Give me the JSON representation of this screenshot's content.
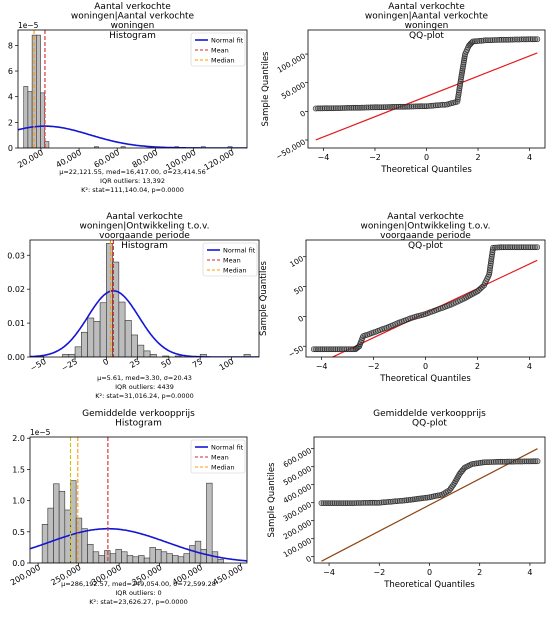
{
  "chart_data": [
    {
      "type": "histogram",
      "title_lines": [
        "Aantal verkochte",
        "woningen|Aantal verkochte",
        "woningen",
        "Histogram"
      ],
      "x_ticks": [
        20000,
        40000,
        60000,
        80000,
        100000,
        120000
      ],
      "x_tick_labels": [
        "20,000",
        "40,000",
        "60,000",
        "80,000",
        "100,000",
        "120,000"
      ],
      "y_ticks": [
        0,
        2,
        4,
        6,
        8
      ],
      "y_tick_labels": [
        "0",
        "2",
        "4",
        "6",
        "8"
      ],
      "y_scale_label": "1e−5",
      "xlim": [
        8000,
        128000
      ],
      "ylim": [
        0,
        9.2
      ],
      "bins": [
        {
          "x0": 11000,
          "x1": 13200,
          "v": 4.8
        },
        {
          "x0": 13200,
          "x1": 15400,
          "v": 4.4
        },
        {
          "x0": 15400,
          "x1": 17600,
          "v": 8.8
        },
        {
          "x0": 17600,
          "x1": 19800,
          "v": 8.8
        },
        {
          "x0": 19800,
          "x1": 22000,
          "v": 4.3
        },
        {
          "x0": 22000,
          "x1": 24200,
          "v": 0.5
        },
        {
          "x0": 48000,
          "x1": 50200,
          "v": 0.1
        },
        {
          "x0": 62000,
          "x1": 64200,
          "v": 0.1
        },
        {
          "x0": 76000,
          "x1": 78200,
          "v": 0.1
        },
        {
          "x0": 90000,
          "x1": 92200,
          "v": 0.1
        },
        {
          "x0": 104000,
          "x1": 106200,
          "v": 0.1
        },
        {
          "x0": 118000,
          "x1": 120200,
          "v": 0.1
        }
      ],
      "normal_fit": {
        "mu": 22121.55,
        "sigma": 23414.56
      },
      "mean": 22121.55,
      "median": 16417.0,
      "legend": [
        "Normal fit",
        "Mean",
        "Median"
      ],
      "stats_lines": [
        "μ=22,121.55, med=16,417.00, σ=23,414.56",
        "IQR outliers: 13,392",
        "K²: stat=111,140.04, p=0.0000"
      ]
    },
    {
      "type": "qq",
      "title_lines": [
        "Aantal verkochte",
        "woningen|Aantal verkochte",
        "woningen",
        "QQ-plot"
      ],
      "xlabel": "Theoretical Quantiles",
      "ylabel": "Sample Quantiles",
      "x_ticks": [
        -4,
        -2,
        0,
        2,
        4
      ],
      "x_tick_labels": [
        "−4",
        "−2",
        "0",
        "2",
        "4"
      ],
      "y_ticks": [
        -50000,
        0,
        50000,
        100000
      ],
      "y_tick_labels": [
        "−50,000",
        "0",
        "50,000",
        "100,000"
      ],
      "xlim": [
        -4.6,
        4.6
      ],
      "ylim": [
        -64000,
        142000
      ],
      "line_color": "#e41a1c",
      "reference_line": [
        [
          -4.3,
          -50000
        ],
        [
          4.3,
          102000
        ]
      ],
      "sample_curve": [
        [
          -4.3,
          5000
        ],
        [
          -3.0,
          6000
        ],
        [
          -1.5,
          7500
        ],
        [
          0,
          9000
        ],
        [
          0.8,
          12000
        ],
        [
          1.2,
          17000
        ],
        [
          1.35,
          60000
        ],
        [
          1.5,
          100000
        ],
        [
          1.65,
          115000
        ],
        [
          1.8,
          122000
        ],
        [
          2.3,
          124000
        ],
        [
          3.0,
          125000
        ],
        [
          4.3,
          126000
        ]
      ]
    },
    {
      "type": "histogram",
      "title_lines": [
        "Aantal verkochte",
        "woningen|Ontwikkeling  t.o.v.",
        "voorgaande periode",
        "Histogram"
      ],
      "x_ticks": [
        -50,
        -25,
        0,
        25,
        50,
        75,
        100
      ],
      "x_tick_labels": [
        "−50",
        "−25",
        "0",
        "25",
        "50",
        "75",
        "100"
      ],
      "y_ticks": [
        0.0,
        0.01,
        0.02,
        0.03
      ],
      "y_tick_labels": [
        "0.00",
        "0.01",
        "0.02",
        "0.03"
      ],
      "xlim": [
        -61,
        122
      ],
      "ylim": [
        0,
        0.0345
      ],
      "bins": [
        {
          "x0": -55,
          "x1": -50,
          "v": 0.0003
        },
        {
          "x0": -35,
          "x1": -30,
          "v": 0.0008
        },
        {
          "x0": -30,
          "x1": -25,
          "v": 0.0008
        },
        {
          "x0": -25,
          "x1": -20,
          "v": 0.003
        },
        {
          "x0": -20,
          "x1": -15,
          "v": 0.0073
        },
        {
          "x0": -15,
          "x1": -10,
          "v": 0.0115
        },
        {
          "x0": -10,
          "x1": -5,
          "v": 0.0105
        },
        {
          "x0": -5,
          "x1": 0,
          "v": 0.016
        },
        {
          "x0": 0,
          "x1": 5,
          "v": 0.0335
        },
        {
          "x0": 5,
          "x1": 10,
          "v": 0.028
        },
        {
          "x0": 10,
          "x1": 15,
          "v": 0.0162
        },
        {
          "x0": 15,
          "x1": 20,
          "v": 0.0108
        },
        {
          "x0": 20,
          "x1": 25,
          "v": 0.0065
        },
        {
          "x0": 25,
          "x1": 30,
          "v": 0.0035
        },
        {
          "x0": 30,
          "x1": 35,
          "v": 0.0018
        },
        {
          "x0": 35,
          "x1": 40,
          "v": 0.0008
        },
        {
          "x0": 45,
          "x1": 50,
          "v": 0.0003
        },
        {
          "x0": 55,
          "x1": 60,
          "v": 0.0003
        },
        {
          "x0": 75,
          "x1": 80,
          "v": 0.0008
        },
        {
          "x0": 110,
          "x1": 115,
          "v": 0.0008
        }
      ],
      "normal_fit": {
        "mu": 5.61,
        "sigma": 20.43
      },
      "mean": 5.61,
      "median": 3.3,
      "legend": [
        "Normal fit",
        "Mean",
        "Median"
      ],
      "stats_lines": [
        "μ=5.61, med=3.30, σ=20.43",
        "IQR outliers: 4439",
        "K²: stat=31,016.24, p=0.0000"
      ]
    },
    {
      "type": "qq",
      "title_lines": [
        "Aantal verkochte",
        "woningen|Ontwikkeling  t.o.v.",
        "voorgaande periode",
        "QQ-plot"
      ],
      "xlabel": "Theoretical Quantiles",
      "ylabel": "Sample Quantiles",
      "x_ticks": [
        -4,
        -2,
        0,
        2,
        4
      ],
      "x_tick_labels": [
        "−4",
        "−2",
        "0",
        "2",
        "4"
      ],
      "y_ticks": [
        -50,
        0,
        50,
        100
      ],
      "y_tick_labels": [
        "−50",
        "0",
        "50",
        "100"
      ],
      "xlim": [
        -4.6,
        4.6
      ],
      "ylim": [
        -68,
        128
      ],
      "line_color": "#e41a1c",
      "reference_line": [
        [
          -4.3,
          -83
        ],
        [
          4.3,
          94
        ]
      ],
      "sample_curve": [
        [
          -4.3,
          -55
        ],
        [
          -3.3,
          -55
        ],
        [
          -2.7,
          -55
        ],
        [
          -2.55,
          -50
        ],
        [
          -2.4,
          -33
        ],
        [
          -2.0,
          -27
        ],
        [
          -1.5,
          -19
        ],
        [
          -1.0,
          -10
        ],
        [
          -0.5,
          -2
        ],
        [
          0,
          4
        ],
        [
          0.5,
          12
        ],
        [
          1.0,
          20
        ],
        [
          1.5,
          30
        ],
        [
          2.0,
          42
        ],
        [
          2.25,
          52
        ],
        [
          2.45,
          70
        ],
        [
          2.6,
          115
        ],
        [
          3.0,
          116
        ],
        [
          4.3,
          116
        ]
      ]
    },
    {
      "type": "histogram",
      "title_lines": [
        "Gemiddelde verkoopprijs",
        "Histogram"
      ],
      "x_ticks": [
        200000,
        250000,
        300000,
        350000,
        400000,
        450000
      ],
      "x_tick_labels": [
        "200,000",
        "250,000",
        "300,000",
        "350,000",
        "400,000",
        "450,000"
      ],
      "y_ticks": [
        0.0,
        0.5,
        1.0,
        1.5,
        2.0
      ],
      "y_tick_labels": [
        "0.0",
        "0.5",
        "1.0",
        "1.5",
        "2.0"
      ],
      "y_scale_label": "1e−5",
      "xlim": [
        190000,
        458000
      ],
      "ylim": [
        0,
        2.02
      ],
      "bins": [
        {
          "x0": 205000,
          "x1": 212000,
          "v": 0.62
        },
        {
          "x0": 212000,
          "x1": 219000,
          "v": 0.88
        },
        {
          "x0": 219000,
          "x1": 226000,
          "v": 1.27
        },
        {
          "x0": 226000,
          "x1": 233000,
          "v": 1.15
        },
        {
          "x0": 233000,
          "x1": 240000,
          "v": 0.85
        },
        {
          "x0": 240000,
          "x1": 247000,
          "v": 1.32
        },
        {
          "x0": 247000,
          "x1": 254000,
          "v": 0.72
        },
        {
          "x0": 254000,
          "x1": 261000,
          "v": 0.55
        },
        {
          "x0": 261000,
          "x1": 268000,
          "v": 0.3
        },
        {
          "x0": 268000,
          "x1": 275000,
          "v": 0.18
        },
        {
          "x0": 275000,
          "x1": 282000,
          "v": 0.12
        },
        {
          "x0": 282000,
          "x1": 289000,
          "v": 0.2
        },
        {
          "x0": 289000,
          "x1": 296000,
          "v": 0.15
        },
        {
          "x0": 296000,
          "x1": 303000,
          "v": 0.22
        },
        {
          "x0": 303000,
          "x1": 310000,
          "v": 0.18
        },
        {
          "x0": 310000,
          "x1": 317000,
          "v": 0.12
        },
        {
          "x0": 317000,
          "x1": 324000,
          "v": 0.1
        },
        {
          "x0": 324000,
          "x1": 331000,
          "v": 0.12
        },
        {
          "x0": 331000,
          "x1": 338000,
          "v": 0.08
        },
        {
          "x0": 338000,
          "x1": 345000,
          "v": 0.25
        },
        {
          "x0": 345000,
          "x1": 352000,
          "v": 0.22
        },
        {
          "x0": 352000,
          "x1": 359000,
          "v": 0.18
        },
        {
          "x0": 359000,
          "x1": 366000,
          "v": 0.15
        },
        {
          "x0": 366000,
          "x1": 373000,
          "v": 0.12
        },
        {
          "x0": 373000,
          "x1": 380000,
          "v": 0.1
        },
        {
          "x0": 380000,
          "x1": 387000,
          "v": 0.15
        },
        {
          "x0": 387000,
          "x1": 394000,
          "v": 0.28
        },
        {
          "x0": 394000,
          "x1": 401000,
          "v": 0.35
        },
        {
          "x0": 401000,
          "x1": 408000,
          "v": 0.22
        },
        {
          "x0": 408000,
          "x1": 415000,
          "v": 1.28
        },
        {
          "x0": 415000,
          "x1": 422000,
          "v": 0.18
        },
        {
          "x0": 422000,
          "x1": 429000,
          "v": 0.06
        }
      ],
      "normal_fit": {
        "mu": 286192.57,
        "sigma": 72599.28
      },
      "mean": 286192.57,
      "median": 249054.0,
      "extra_line": 240000,
      "legend": [
        "Normal fit",
        "Mean",
        "Median"
      ],
      "stats_lines": [
        "μ=286,192.57, med=249,054.00, σ=72,599.28",
        "IQR outliers: 0",
        "K²: stat=23,626.27, p=0.0000"
      ]
    },
    {
      "type": "qq",
      "title_lines": [
        "Gemiddelde verkoopprijs",
        "QQ-plot"
      ],
      "xlabel": "Theoretical Quantiles",
      "ylabel": "Sample Quantiles",
      "x_ticks": [
        -4,
        -2,
        0,
        2,
        4
      ],
      "x_tick_labels": [
        "−4",
        "−2",
        "0",
        "2",
        "4"
      ],
      "y_ticks": [
        0,
        100000,
        200000,
        300000,
        400000,
        500000,
        600000
      ],
      "y_tick_labels": [
        "0",
        "100,000",
        "200,000",
        "300,000",
        "400,000",
        "500,000",
        "600,000"
      ],
      "xlim": [
        -4.6,
        4.6
      ],
      "ylim": [
        -35000,
        665000
      ],
      "line_color": "#8b4513",
      "reference_line": [
        [
          -4.3,
          -25000
        ],
        [
          4.3,
          600000
        ]
      ],
      "sample_curve": [
        [
          -4.3,
          298000
        ],
        [
          -3.0,
          298000
        ],
        [
          -2.0,
          300000
        ],
        [
          -1.0,
          312000
        ],
        [
          0,
          330000
        ],
        [
          0.5,
          345000
        ],
        [
          0.8,
          370000
        ],
        [
          1.0,
          410000
        ],
        [
          1.2,
          460000
        ],
        [
          1.4,
          495000
        ],
        [
          1.7,
          515000
        ],
        [
          2.2,
          525000
        ],
        [
          3.0,
          528000
        ],
        [
          4.3,
          530000
        ]
      ]
    }
  ]
}
